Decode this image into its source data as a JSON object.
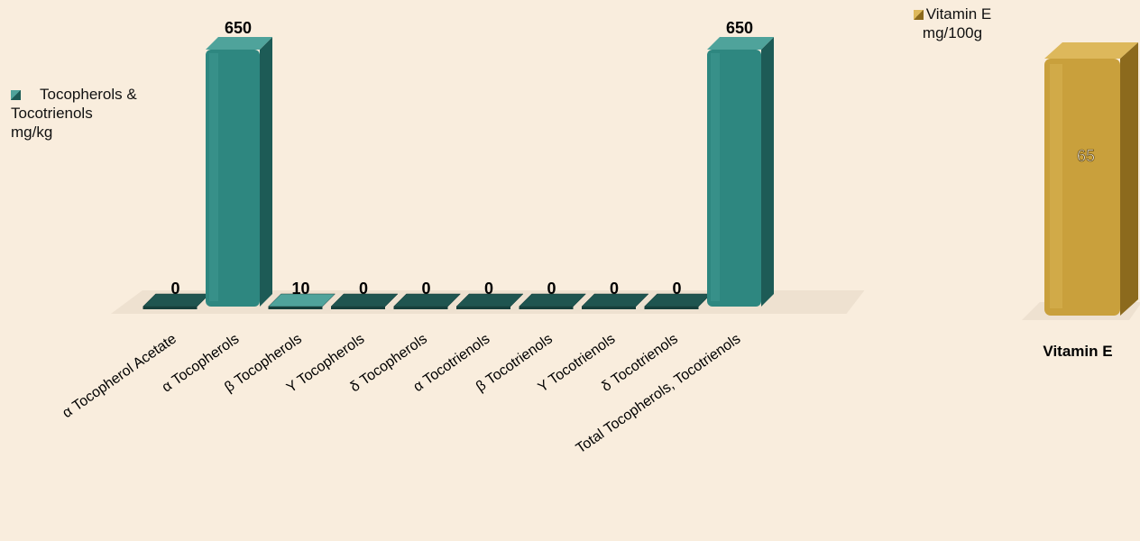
{
  "colors": {
    "background": "#f9eddd",
    "teal_front": "#2e8780",
    "teal_top": "#4fa39b",
    "teal_side": "#1d5b56",
    "teal_flat": "#1f5550",
    "gold_front": "#c9a03c",
    "gold_top": "#ddb85b",
    "gold_side": "#8c6a1d"
  },
  "chart_data": [
    {
      "type": "bar",
      "categories": [
        "α Tocopherol Acetate",
        "α Tocopherols",
        "β Tocopherols",
        "Y Tocopherols",
        "δ Tocopherols",
        "α Tocotrienols",
        "β Tocotrienols",
        "Y Tocotrienols",
        "δ Tocotrienols",
        "Total Tocopherols, Tocotrienols"
      ],
      "series": [
        {
          "name": "Tocopherols & Tocotrienols mg/kg",
          "values": [
            0,
            650,
            10,
            0,
            0,
            0,
            0,
            0,
            0,
            650
          ],
          "data_labels": [
            "0",
            "650",
            "10",
            "0",
            "0",
            "0",
            "0",
            "0",
            "0",
            "650"
          ]
        }
      ],
      "ylim": [
        0,
        650
      ],
      "grid": false,
      "legend_position": "left"
    },
    {
      "type": "bar",
      "categories": [
        "Vitamin E"
      ],
      "series": [
        {
          "name": "Vitamin E mg/100g",
          "values": [
            65
          ],
          "data_labels": [
            "65"
          ]
        }
      ],
      "ylim": [
        0,
        65
      ],
      "grid": false,
      "legend_position": "top"
    }
  ]
}
